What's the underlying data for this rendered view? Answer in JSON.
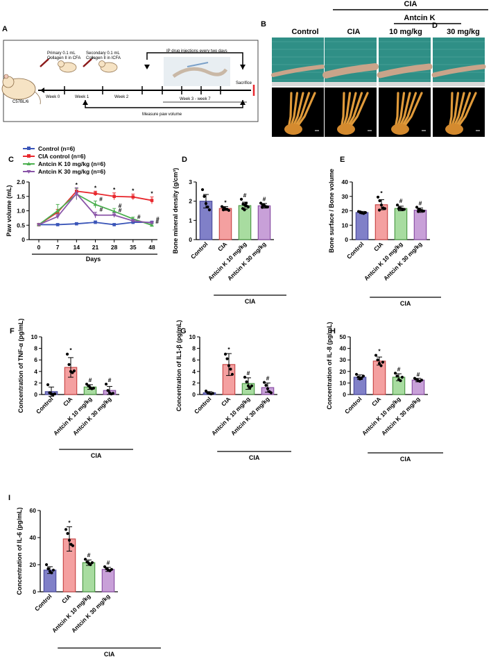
{
  "panels": {
    "A": "A",
    "B": "B",
    "C": "C",
    "D": "D",
    "E": "E",
    "F": "F",
    "G": "G",
    "H": "H",
    "I": "I"
  },
  "schematic": {
    "primary": [
      "Primary 0.1 mL",
      "Collagen II in CFA"
    ],
    "secondary": [
      "Secondary 0.1 mL",
      "Collagen II in ICFA"
    ],
    "ip": "IP drug injections every two days",
    "strain": "C57BL/6",
    "weeks": [
      "Week 0",
      "Week 1",
      "Week 2"
    ],
    "week_range": "Week 3 - week 7",
    "sacrifice": "Sacrifice",
    "measure": "Measure paw volume"
  },
  "photos": {
    "header_cia": "CIA",
    "header_antcin": "Antcin K",
    "stray_letter": "D",
    "cols": [
      "Control",
      "CIA",
      "10 mg/kg",
      "30 mg/kg"
    ]
  },
  "group_labels": [
    "Control",
    "CIA",
    "Antcin K 10 mg/kg",
    "Antcin K 30 mg/kg"
  ],
  "colors": {
    "control": "#8080c8",
    "cia": "#f4a0a0",
    "low": "#a8dca0",
    "high": "#c8a0d8",
    "line_ctrl": "#3a55b8",
    "line_cia": "#e8282e",
    "line_low": "#4cb050",
    "line_high": "#8a55a8"
  },
  "cia_bracket": "CIA",
  "chart_data": [
    {
      "id": "C",
      "type": "line",
      "xlabel": "Days",
      "ylabel": "Paw volume (mL)",
      "x": [
        0,
        7,
        14,
        21,
        28,
        35,
        48
      ],
      "ylim": [
        0,
        2
      ],
      "yticks": [
        "0",
        "0.5",
        "1.0",
        "1.5",
        "2.0"
      ],
      "series": [
        {
          "name": "Control (n=6)",
          "values": [
            0.52,
            0.52,
            0.55,
            0.6,
            0.52,
            0.6,
            0.6
          ],
          "err": [
            0.03,
            0.03,
            0.03,
            0.05,
            0.03,
            0.03,
            0.04
          ]
        },
        {
          "name": "CIA control (n=6)",
          "values": [
            0.52,
            0.95,
            1.68,
            1.6,
            1.5,
            1.48,
            1.36
          ],
          "err": [
            0.03,
            0.1,
            0.1,
            0.08,
            0.12,
            0.1,
            0.12
          ]
        },
        {
          "name": "Antcin K 10 mg/kg (n=6)",
          "values": [
            0.52,
            1.0,
            1.58,
            1.22,
            0.98,
            0.72,
            0.5
          ],
          "err": [
            0.03,
            0.22,
            0.2,
            0.12,
            0.1,
            0.06,
            0.05
          ]
        },
        {
          "name": "Antcin K 30 mg/kg (n=6)",
          "values": [
            0.52,
            0.8,
            1.6,
            0.85,
            0.85,
            0.65,
            0.58
          ],
          "err": [
            0.03,
            0.08,
            0.2,
            0.1,
            0.08,
            0.05,
            0.05
          ]
        }
      ],
      "annotations": [
        "*",
        "*",
        "*",
        "*",
        "*",
        "#",
        "#",
        "#",
        "#",
        "#",
        "#",
        "#"
      ]
    },
    {
      "id": "D",
      "type": "bar",
      "ylabel": "Bone mineral density (g/cm³)",
      "ylim": [
        0,
        3
      ],
      "yticks": [
        "0",
        "1",
        "2",
        "3"
      ],
      "categories": [
        "Control",
        "CIA",
        "Antcin K 10 mg/kg",
        "Antcin K 30 mg/kg"
      ],
      "values": [
        2.0,
        1.62,
        1.77,
        1.76
      ],
      "err": [
        0.35,
        0.1,
        0.18,
        0.12
      ],
      "points": [
        [
          2.6,
          2.25,
          1.88,
          1.7,
          1.55
        ],
        [
          1.72,
          1.65,
          1.6,
          1.58,
          1.52,
          1.55
        ],
        [
          2.1,
          1.85,
          1.8,
          1.75,
          1.7,
          1.62,
          1.55,
          1.9
        ],
        [
          1.9,
          1.82,
          1.78,
          1.72,
          1.7,
          1.68,
          1.8
        ]
      ],
      "marks": [
        "",
        "*",
        "#",
        "#"
      ]
    },
    {
      "id": "E",
      "type": "bar",
      "ylabel": "Bone surface / Bone volume",
      "ylim": [
        0,
        40
      ],
      "yticks": [
        "0",
        "10",
        "20",
        "30",
        "40"
      ],
      "categories": [
        "Control",
        "CIA",
        "Antcin K 10 mg/kg",
        "Antcin K 30 mg/kg"
      ],
      "values": [
        18.8,
        24.2,
        21.6,
        20.4
      ],
      "err": [
        0.8,
        3.5,
        1.6,
        1.5
      ],
      "points": [
        [
          19.5,
          19.2,
          18.5,
          18.2,
          18.8
        ],
        [
          29.5,
          27,
          24,
          22,
          21.5,
          20.5
        ],
        [
          24,
          22,
          21.5,
          21.2,
          21,
          21.4
        ],
        [
          22.5,
          21,
          20.5,
          20.2,
          19.8,
          19.5
        ]
      ],
      "marks": [
        "",
        "*",
        "#",
        "#"
      ]
    },
    {
      "id": "F",
      "type": "bar",
      "ylabel": "Concentration of TNF-α (pg/mL)",
      "ylim": [
        0,
        10
      ],
      "yticks": [
        "0",
        "2",
        "4",
        "6",
        "8",
        "10"
      ],
      "categories": [
        "Control",
        "CIA",
        "Antcin K 10 mg/kg",
        "Antcin K 30 mg/kg"
      ],
      "values": [
        0.5,
        4.7,
        1.3,
        0.7
      ],
      "err": [
        0.8,
        1.7,
        0.4,
        0.7
      ],
      "points": [
        [
          1.7,
          0.3,
          0.1,
          0,
          0.1
        ],
        [
          7,
          5.2,
          4,
          3.8,
          4.1
        ],
        [
          1.8,
          1.5,
          1.2,
          1,
          1.1
        ],
        [
          1.8,
          0.7,
          0.3,
          0.1,
          0.2
        ]
      ],
      "marks": [
        "",
        "*",
        "#",
        "#"
      ]
    },
    {
      "id": "G",
      "type": "bar",
      "ylabel": "Concentration of IL1-β (pg/mL)",
      "ylim": [
        0,
        10
      ],
      "yticks": [
        "0",
        "2",
        "4",
        "6",
        "8",
        "10"
      ],
      "categories": [
        "Control",
        "CIA",
        "Antcin K 10 mg/kg",
        "Antcin K 30 mg/kg"
      ],
      "values": [
        0.3,
        5.2,
        1.9,
        1.2
      ],
      "err": [
        0.2,
        1.9,
        1.0,
        0.8
      ],
      "points": [
        [
          0.6,
          0.3,
          0.2,
          0.1,
          0.2
        ],
        [
          7,
          6.2,
          5,
          4.4,
          3.5
        ],
        [
          3,
          2.2,
          1.5,
          1.2,
          1.5
        ],
        [
          2.1,
          1.6,
          1,
          0.5,
          0.3
        ]
      ],
      "marks": [
        "",
        "*",
        "#",
        "#"
      ]
    },
    {
      "id": "H",
      "type": "bar",
      "ylabel": "Concentration of IL-8 (pg/mL)",
      "ylim": [
        0,
        50
      ],
      "yticks": [
        "0",
        "10",
        "20",
        "30",
        "40",
        "50"
      ],
      "categories": [
        "Control",
        "CIA",
        "Antcin K 10 mg/kg",
        "Antcin K 30 mg/kg"
      ],
      "values": [
        15,
        29,
        15,
        12.5
      ],
      "err": [
        2,
        3.5,
        3,
        1.5
      ],
      "points": [
        [
          17.5,
          15,
          13.5,
          14.5,
          16
        ],
        [
          34,
          30,
          27,
          25,
          28
        ],
        [
          18.5,
          16,
          13,
          12,
          15
        ],
        [
          14,
          13,
          12,
          11.5,
          12.5
        ]
      ],
      "marks": [
        "",
        "*",
        "#",
        "#"
      ]
    },
    {
      "id": "I",
      "type": "bar",
      "ylabel": "Concentration of IL-6 (pg/mL)",
      "ylim": [
        0,
        60
      ],
      "yticks": [
        "0",
        "20",
        "40",
        "60"
      ],
      "categories": [
        "Control",
        "CIA",
        "Antcin K 10 mg/kg",
        "Antcin K 30 mg/kg"
      ],
      "values": [
        16,
        39,
        21.5,
        16.5
      ],
      "err": [
        2.5,
        9,
        2,
        1.5
      ],
      "points": [
        [
          20,
          17,
          15,
          14,
          16
        ],
        [
          46,
          43,
          38,
          35,
          34
        ],
        [
          24,
          22,
          21,
          20,
          21.5
        ],
        [
          18.5,
          17,
          16,
          15.5,
          16.5
        ]
      ],
      "marks": [
        "",
        "*",
        "#",
        "#"
      ]
    }
  ]
}
